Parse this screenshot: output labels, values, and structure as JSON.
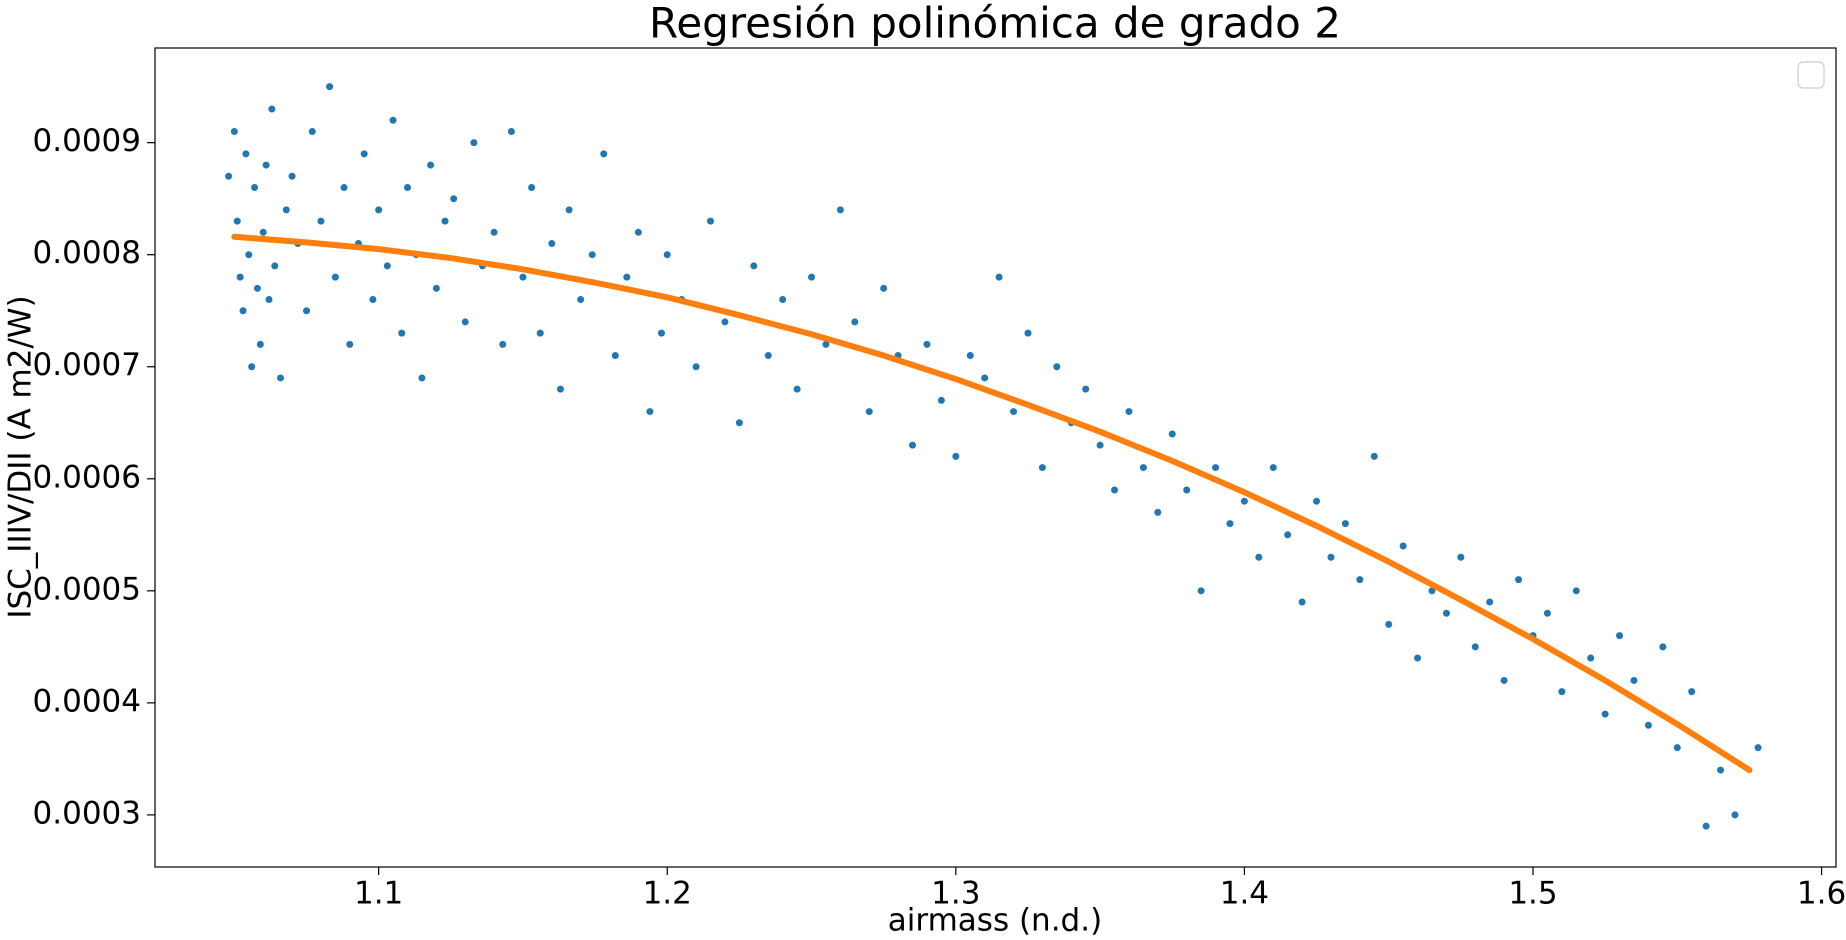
{
  "chart_data": {
    "type": "scatter",
    "title": "Regresión polinómica de grado 2",
    "xlabel": "airmass (n.d.)",
    "ylabel": "ISC_IIIV/DII (A m2/W)",
    "xlim": [
      1.0225,
      1.605
    ],
    "ylim": [
      0.0002535,
      0.0009845
    ],
    "xticks": [
      1.1,
      1.2,
      1.3,
      1.4,
      1.5,
      1.6
    ],
    "yticks": [
      0.0003,
      0.0004,
      0.0005,
      0.0006,
      0.0007,
      0.0008,
      0.0009
    ],
    "legend": "upper right",
    "series": [
      {
        "color": "#1f77b4",
        "style": "markers",
        "x": [
          1.048,
          1.05,
          1.051,
          1.052,
          1.053,
          1.054,
          1.055,
          1.056,
          1.057,
          1.058,
          1.059,
          1.06,
          1.061,
          1.062,
          1.063,
          1.064,
          1.066,
          1.068,
          1.07,
          1.072,
          1.075,
          1.077,
          1.08,
          1.083,
          1.085,
          1.088,
          1.09,
          1.093,
          1.095,
          1.098,
          1.1,
          1.103,
          1.105,
          1.108,
          1.11,
          1.113,
          1.115,
          1.118,
          1.12,
          1.123,
          1.126,
          1.13,
          1.133,
          1.136,
          1.14,
          1.143,
          1.146,
          1.15,
          1.153,
          1.156,
          1.16,
          1.163,
          1.166,
          1.17,
          1.174,
          1.178,
          1.182,
          1.186,
          1.19,
          1.194,
          1.198,
          1.2,
          1.205,
          1.21,
          1.215,
          1.22,
          1.225,
          1.23,
          1.235,
          1.24,
          1.245,
          1.25,
          1.255,
          1.26,
          1.265,
          1.27,
          1.275,
          1.28,
          1.285,
          1.29,
          1.295,
          1.3,
          1.305,
          1.31,
          1.315,
          1.32,
          1.325,
          1.33,
          1.335,
          1.34,
          1.345,
          1.35,
          1.355,
          1.36,
          1.365,
          1.37,
          1.375,
          1.38,
          1.385,
          1.39,
          1.395,
          1.4,
          1.405,
          1.41,
          1.415,
          1.42,
          1.425,
          1.43,
          1.435,
          1.44,
          1.445,
          1.45,
          1.455,
          1.46,
          1.465,
          1.47,
          1.475,
          1.48,
          1.485,
          1.49,
          1.495,
          1.5,
          1.505,
          1.51,
          1.515,
          1.52,
          1.525,
          1.53,
          1.535,
          1.54,
          1.545,
          1.55,
          1.555,
          1.56,
          1.565,
          1.57,
          1.578
        ],
        "values": [
          0.00087,
          0.00091,
          0.00083,
          0.00078,
          0.00075,
          0.00089,
          0.0008,
          0.0007,
          0.00086,
          0.00077,
          0.00072,
          0.00082,
          0.00088,
          0.00076,
          0.00093,
          0.00079,
          0.00069,
          0.00084,
          0.00087,
          0.00081,
          0.00075,
          0.00091,
          0.00083,
          0.00095,
          0.00078,
          0.00086,
          0.00072,
          0.00081,
          0.00089,
          0.00076,
          0.00084,
          0.00079,
          0.00092,
          0.00073,
          0.00086,
          0.0008,
          0.00069,
          0.00088,
          0.00077,
          0.00083,
          0.00085,
          0.00074,
          0.0009,
          0.00079,
          0.00082,
          0.00072,
          0.00091,
          0.00078,
          0.00086,
          0.00073,
          0.00081,
          0.00068,
          0.00084,
          0.00076,
          0.0008,
          0.00089,
          0.00071,
          0.00078,
          0.00082,
          0.00066,
          0.00073,
          0.0008,
          0.00076,
          0.0007,
          0.00083,
          0.00074,
          0.00065,
          0.00079,
          0.00071,
          0.00076,
          0.00068,
          0.00078,
          0.00072,
          0.00084,
          0.00074,
          0.00066,
          0.00077,
          0.00071,
          0.00063,
          0.00072,
          0.00067,
          0.00062,
          0.00071,
          0.00069,
          0.00078,
          0.00066,
          0.00073,
          0.00061,
          0.0007,
          0.00065,
          0.00068,
          0.00063,
          0.00059,
          0.00066,
          0.00061,
          0.00057,
          0.00064,
          0.00059,
          0.0005,
          0.00061,
          0.00056,
          0.00058,
          0.00053,
          0.00061,
          0.00055,
          0.00049,
          0.00058,
          0.00053,
          0.00056,
          0.00051,
          0.00062,
          0.00047,
          0.00054,
          0.00044,
          0.0005,
          0.00048,
          0.00053,
          0.00045,
          0.00049,
          0.00042,
          0.00051,
          0.00046,
          0.00048,
          0.00041,
          0.0005,
          0.00044,
          0.00039,
          0.00046,
          0.00042,
          0.00038,
          0.00045,
          0.00036,
          0.00041,
          0.00029,
          0.00034,
          0.0003,
          0.00036
        ]
      },
      {
        "color": "#ff7f0e",
        "style": "line",
        "x": [
          1.05,
          1.075,
          1.1,
          1.125,
          1.15,
          1.175,
          1.2,
          1.225,
          1.25,
          1.275,
          1.3,
          1.325,
          1.35,
          1.375,
          1.4,
          1.425,
          1.45,
          1.475,
          1.5,
          1.525,
          1.55,
          1.575
        ],
        "values": [
          0.000816,
          0.000811,
          0.000805,
          0.000797,
          0.000787,
          0.000775,
          0.000762,
          0.000746,
          0.000729,
          0.00071,
          0.000689,
          0.000666,
          0.000642,
          0.000616,
          0.000588,
          0.000558,
          0.000526,
          0.000492,
          0.000457,
          0.00042,
          0.000381,
          0.00034
        ]
      }
    ]
  }
}
